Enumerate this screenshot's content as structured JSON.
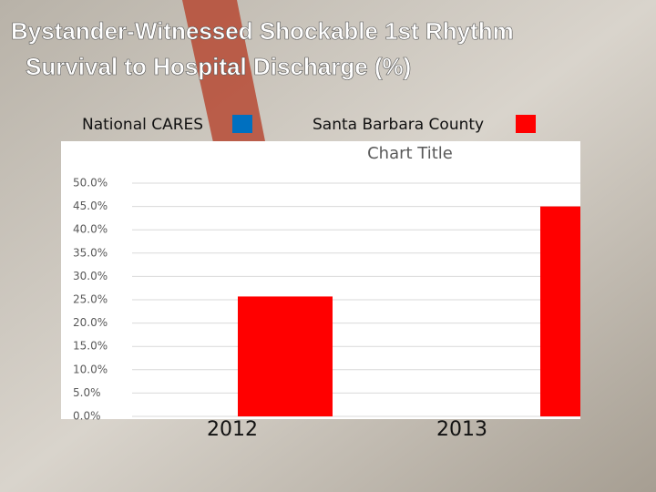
{
  "chart_data": {
    "type": "bar",
    "title_lines": [
      "Bystander-Witnessed Shockable 1st Rhythm",
      "Survival to Hospital Discharge (%)"
    ],
    "inner_title": "Chart Title",
    "categories": [
      "2012",
      "2013"
    ],
    "series": [
      {
        "name": "National CARES",
        "color": "#0070c0",
        "values": [
          null,
          null
        ]
      },
      {
        "name": "Santa Barbara County",
        "color": "#ff0000",
        "values": [
          25.7,
          45.0
        ]
      }
    ],
    "ylim": [
      0,
      50
    ],
    "yticks": [
      {
        "value": 0,
        "label": "0.0%"
      },
      {
        "value": 5,
        "label": "5.0%"
      },
      {
        "value": 10,
        "label": "10.0%"
      },
      {
        "value": 15,
        "label": "15.0%"
      },
      {
        "value": 20,
        "label": "20.0%"
      },
      {
        "value": 25,
        "label": "25.0%"
      },
      {
        "value": 30,
        "label": "30.0%"
      },
      {
        "value": 35,
        "label": "35.0%"
      },
      {
        "value": 40,
        "label": "40.0%"
      },
      {
        "value": 45,
        "label": "45.0%"
      },
      {
        "value": 50,
        "label": "50.0%"
      }
    ],
    "grid": true
  }
}
